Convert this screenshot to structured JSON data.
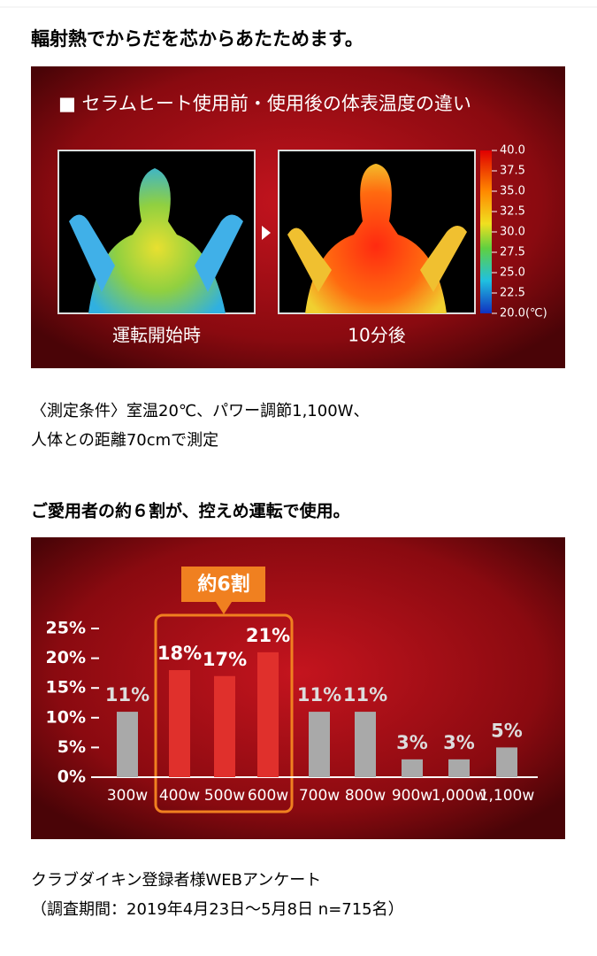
{
  "heading1": "輻射熱でからだを芯からあたためます。",
  "thermal": {
    "title": "■ セラムヒート使用前・使用後の体表温度の違い",
    "before_label": "運転開始時",
    "after_label": "10分後",
    "scale": {
      "lim": [
        20,
        40
      ],
      "ticks": [
        {
          "value": 40,
          "label": "40.0"
        },
        {
          "value": 37.5,
          "label": "37.5"
        },
        {
          "value": 35,
          "label": "35.0"
        },
        {
          "value": 32.5,
          "label": "32.5"
        },
        {
          "value": 30,
          "label": "30.0"
        },
        {
          "value": 27.5,
          "label": "27.5"
        },
        {
          "value": 25,
          "label": "25.0"
        },
        {
          "value": 22.5,
          "label": "22.5"
        },
        {
          "value": 20,
          "label": "20.0(℃)"
        }
      ]
    }
  },
  "conditions": [
    "〈測定条件〉室温20℃、パワー調節1,100W、",
    "人体との距離70cmで測定"
  ],
  "heading2": "ご愛用者の約６割が、控えめ運転で使用。",
  "chart": {
    "type": "bar",
    "callout": "約6割",
    "categories": [
      "300w",
      "400w",
      "500w",
      "600w",
      "700w",
      "800w",
      "900w",
      "1,000w",
      "1,100w"
    ],
    "values": [
      11,
      18,
      17,
      21,
      11,
      11,
      3,
      3,
      5
    ],
    "value_labels": [
      "11%",
      "18%",
      "17%",
      "21%",
      "11%",
      "11%",
      "3%",
      "3%",
      "5%"
    ],
    "colors": [
      "#a9a9a9",
      "#e0302c",
      "#e0302c",
      "#e0302c",
      "#a9a9a9",
      "#a9a9a9",
      "#a9a9a9",
      "#a9a9a9",
      "#a9a9a9"
    ],
    "ylim": [
      0,
      25
    ],
    "yticks": [
      {
        "value": 0,
        "label": "0%"
      },
      {
        "value": 5,
        "label": "5%"
      },
      {
        "value": 10,
        "label": "10%"
      },
      {
        "value": 15,
        "label": "15%"
      },
      {
        "value": 20,
        "label": "20%"
      },
      {
        "value": 25,
        "label": "25%"
      }
    ]
  },
  "source": [
    "クラブダイキン登録者様WEBアンケート",
    "（調査期間：2019年4月23日〜5月8日 n=715名）"
  ]
}
